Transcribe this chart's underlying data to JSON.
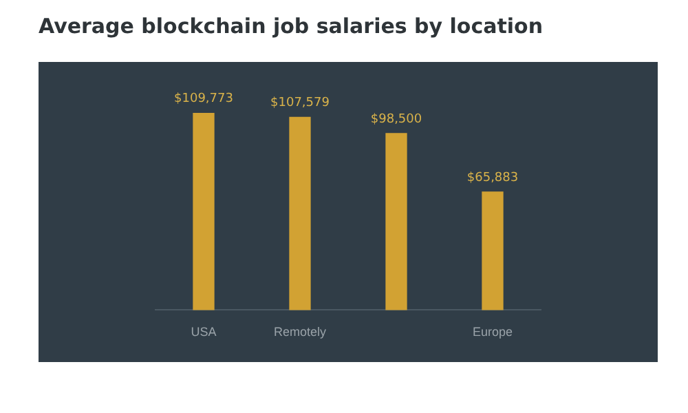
{
  "chart_data": {
    "type": "bar",
    "title": "Average blockchain job salaries by location",
    "categories": [
      "USA",
      "Remotely",
      null,
      "Europe"
    ],
    "values": [
      109773,
      107579,
      98500,
      65883
    ],
    "value_labels": [
      "$109,773",
      "$107,579",
      "$98,500",
      "$65,883"
    ],
    "color": "#d2a233",
    "grid": false,
    "legend": false
  }
}
